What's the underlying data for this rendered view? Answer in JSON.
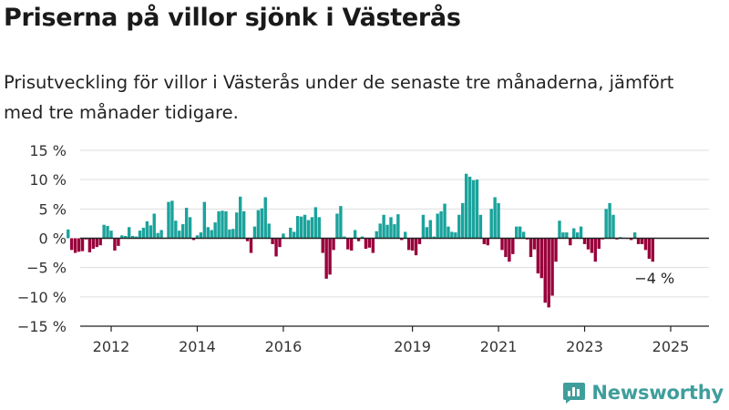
{
  "header": {
    "title": "Priserna på villor sjönk i Västerås",
    "subtitle": "Prisutveckling för villor i Västerås under de senaste tre månaderna, jämfört med tre månader tidigare."
  },
  "brand": {
    "name": "Newsworthy",
    "icon": "bar-chart-logo-icon"
  },
  "colors": {
    "positive": "#1aa39c",
    "negative": "#99003b",
    "grid": "#dddddd",
    "axis": "#222222",
    "brand": "#3f9e9c"
  },
  "chart_data": {
    "type": "bar",
    "x_start": "2011-07",
    "x_step": "month",
    "xticks": [
      "2012",
      "2014",
      "2016",
      "2019",
      "2021",
      "2023",
      "2025"
    ],
    "yticks": [
      "15 %",
      "10 %",
      "5 %",
      "0 %",
      "−5 %",
      "−10 %",
      "−15 %"
    ],
    "ylim": [
      -15,
      15
    ],
    "values": [
      1.5,
      -2.0,
      -2.5,
      -2.3,
      -2.2,
      -0.2,
      -2.4,
      -1.8,
      -1.5,
      -1.2,
      2.3,
      2.1,
      1.3,
      -2.1,
      -1.3,
      0.5,
      0.4,
      1.9,
      0.4,
      0.3,
      1.3,
      1.8,
      2.9,
      2.2,
      4.2,
      0.9,
      1.4,
      0.1,
      6.2,
      6.4,
      3.0,
      1.3,
      2.4,
      5.2,
      3.6,
      -0.3,
      0.5,
      1.0,
      6.2,
      1.9,
      1.4,
      2.7,
      4.6,
      4.7,
      4.6,
      1.5,
      1.6,
      4.4,
      7.1,
      4.6,
      -0.5,
      -2.5,
      2.0,
      4.8,
      5.1,
      7.0,
      2.5,
      -1.0,
      -3.1,
      -1.5,
      0.8,
      0.1,
      1.8,
      1.1,
      3.8,
      3.7,
      4.0,
      3.1,
      3.6,
      5.3,
      3.6,
      -2.5,
      -6.9,
      -6.2,
      -2.0,
      4.2,
      5.5,
      0.3,
      -1.9,
      -2.1,
      1.4,
      -0.5,
      0.3,
      -1.8,
      -1.6,
      -2.5,
      1.2,
      2.5,
      4.0,
      2.3,
      3.6,
      2.4,
      4.1,
      -0.3,
      1.1,
      -2.0,
      -2.1,
      -2.9,
      -1.0,
      4.0,
      1.9,
      3.1,
      0.3,
      4.2,
      4.6,
      5.9,
      2.0,
      1.1,
      1.0,
      4.0,
      6.0,
      11.0,
      10.5,
      9.9,
      10.0,
      4.0,
      -1.0,
      -1.2,
      5.0,
      7.0,
      6.0,
      -2.0,
      -3.2,
      -4.0,
      -2.7,
      2.0,
      2.0,
      1.1,
      -0.2,
      -3.2,
      -1.9,
      -6.0,
      -6.8,
      -11.0,
      -11.8,
      -9.8,
      -4.0,
      3.0,
      1.0,
      1.0,
      -1.2,
      1.7,
      1.0,
      2.0,
      -1.0,
      -1.9,
      -2.5,
      -4.0,
      -1.8,
      -0.2,
      5.0,
      6.0,
      4.0,
      -0.2,
      0.2,
      0.1,
      -0.1,
      -0.3,
      1.0,
      -1.0,
      -1.0,
      -2.0,
      -3.5,
      -4.0
    ],
    "annotation": {
      "text": "−4 %"
    }
  }
}
